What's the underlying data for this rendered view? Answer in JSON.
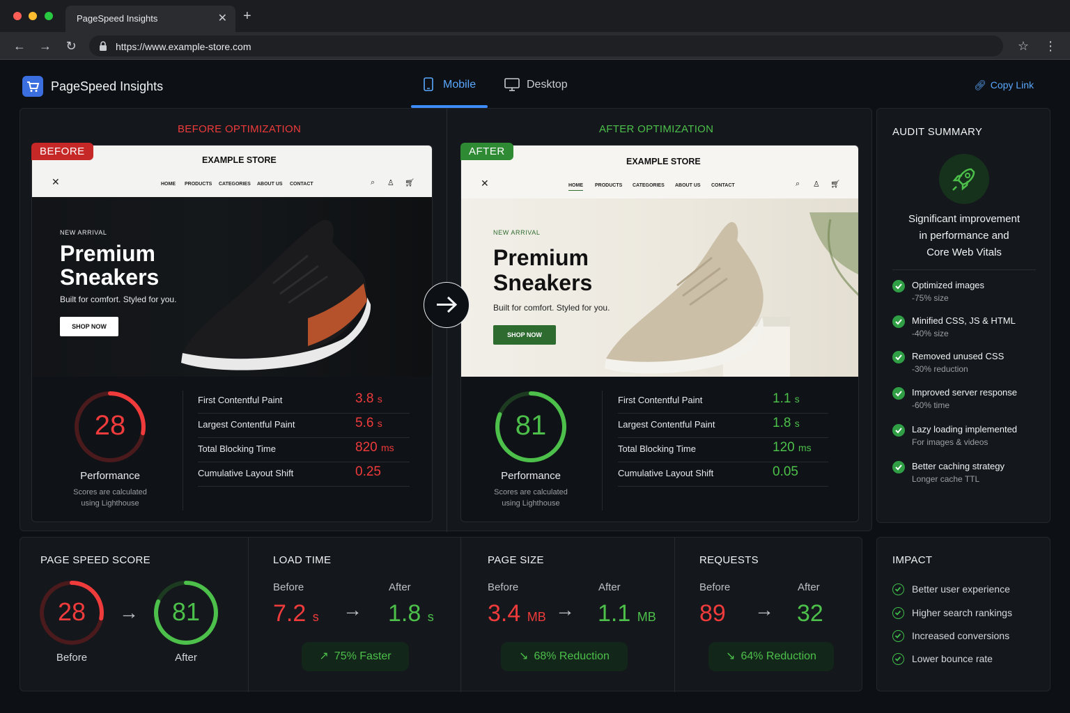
{
  "browser": {
    "tab_title": "PageSpeed Insights",
    "url": "https://www.example-store.com"
  },
  "header": {
    "brand": "PageSpeed Insights",
    "tabs": [
      {
        "label": "Mobile",
        "active": true
      },
      {
        "label": "Desktop",
        "active": false
      }
    ],
    "copy_link": "Copy Link"
  },
  "before": {
    "section_title": "BEFORE OPTIMIZATION",
    "badge": "BEFORE",
    "store_name": "EXAMPLE STORE",
    "nav": [
      "HOME",
      "PRODUCTS",
      "CATEGORIES",
      "ABOUT US",
      "CONTACT"
    ],
    "kicker": "NEW ARRIVAL",
    "title_line1": "Premium",
    "title_line2": "Sneakers",
    "subtitle": "Built for comfort. Styled for you.",
    "cta": "SHOP NOW",
    "score": 28,
    "score_label": "Performance",
    "score_note_line1": "Scores are calculated",
    "score_note_line2": "using Lighthouse",
    "metrics": [
      {
        "name": "First Contentful Paint",
        "value": "3.8",
        "unit": "s"
      },
      {
        "name": "Largest Contentful Paint",
        "value": "5.6",
        "unit": "s"
      },
      {
        "name": "Total Blocking Time",
        "value": "820",
        "unit": "ms"
      },
      {
        "name": "Cumulative Layout Shift",
        "value": "0.25",
        "unit": ""
      }
    ]
  },
  "after": {
    "section_title": "AFTER OPTIMIZATION",
    "badge": "AFTER",
    "store_name": "EXAMPLE STORE",
    "nav": [
      "HOME",
      "PRODUCTS",
      "CATEGORIES",
      "ABOUT US",
      "CONTACT"
    ],
    "kicker": "NEW ARRIVAL",
    "title_line1": "Premium",
    "title_line2": "Sneakers",
    "subtitle": "Built for comfort. Styled for you.",
    "cta": "SHOP NOW",
    "score": 81,
    "score_label": "Performance",
    "score_note_line1": "Scores are calculated",
    "score_note_line2": "using Lighthouse",
    "metrics": [
      {
        "name": "First Contentful Paint",
        "value": "1.1",
        "unit": "s"
      },
      {
        "name": "Largest Contentful Paint",
        "value": "1.8",
        "unit": "s"
      },
      {
        "name": "Total Blocking Time",
        "value": "120",
        "unit": "ms"
      },
      {
        "name": "Cumulative Layout Shift",
        "value": "0.05",
        "unit": ""
      }
    ]
  },
  "audit": {
    "title": "AUDIT SUMMARY",
    "summary_line1": "Significant improvement",
    "summary_line2": "in performance and",
    "summary_line3": "Core Web Vitals",
    "items": [
      {
        "title": "Optimized images",
        "sub": "-75% size"
      },
      {
        "title": "Minified CSS, JS & HTML",
        "sub": "-40% size"
      },
      {
        "title": "Removed unused CSS",
        "sub": "-30% reduction"
      },
      {
        "title": "Improved server response",
        "sub": "-60% time"
      },
      {
        "title": "Lazy loading implemented",
        "sub": "For images & videos"
      },
      {
        "title": "Better caching strategy",
        "sub": "Longer cache TTL"
      }
    ]
  },
  "stats": {
    "page_speed": {
      "title": "PAGE SPEED SCORE",
      "before": 28,
      "after": 81,
      "before_label": "Before",
      "after_label": "After"
    },
    "load_time": {
      "title": "LOAD TIME",
      "before_label": "Before",
      "after_label": "After",
      "before_value": "7.2",
      "after_value": "1.8",
      "unit": "s",
      "pill": "75% Faster"
    },
    "page_size": {
      "title": "PAGE SIZE",
      "before_label": "Before",
      "after_label": "After",
      "before_value": "3.4",
      "after_value": "1.1",
      "unit": "MB",
      "pill": "68% Reduction"
    },
    "requests": {
      "title": "REQUESTS",
      "before_label": "Before",
      "after_label": "After",
      "before_value": "89",
      "after_value": "32",
      "pill": "64% Reduction"
    }
  },
  "impact": {
    "title": "IMPACT",
    "items": [
      "Better user experience",
      "Higher search rankings",
      "Increased conversions",
      "Lower bounce rate"
    ]
  },
  "colors": {
    "bad": "#ef3b3b",
    "good": "#4cc04a",
    "accent": "#5aa8ff"
  }
}
